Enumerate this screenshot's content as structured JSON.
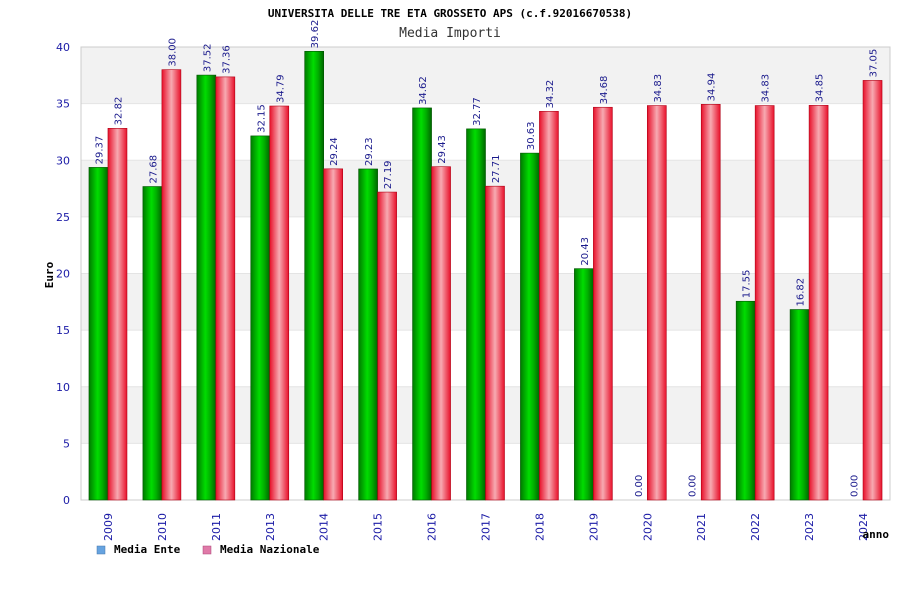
{
  "chart_data": {
    "type": "bar",
    "title": "UNIVERSITA DELLE TRE ETA GROSSETO APS (c.f.92016670538)",
    "subtitle": "Media Importi",
    "xlabel": "anno",
    "ylabel": "Euro",
    "ylim": [
      0,
      40
    ],
    "yticks": [
      0,
      5,
      10,
      15,
      20,
      25,
      30,
      35,
      40
    ],
    "ytick_labels": [
      "0",
      "5",
      "10",
      "15",
      "20",
      "25",
      "30",
      "35",
      "40"
    ],
    "grid": true,
    "legend_position": "bottom-left",
    "categories": [
      "2009",
      "2010",
      "2011",
      "2013",
      "2014",
      "2015",
      "2016",
      "2017",
      "2018",
      "2019",
      "2020",
      "2021",
      "2022",
      "2023",
      "2024"
    ],
    "series": [
      {
        "name": "Media Ente",
        "color": "#00bb00",
        "legend_color": "#66a3e0",
        "values": [
          29.37,
          27.68,
          37.52,
          32.15,
          39.62,
          29.23,
          34.62,
          32.77,
          30.63,
          20.43,
          0.0,
          0.0,
          17.55,
          16.82,
          0.0
        ],
        "labels": [
          "29.37",
          "27.68",
          "37.52",
          "32.15",
          "39.62",
          "29.23",
          "34.62",
          "32.77",
          "30.63",
          "20.43",
          "0.00",
          "0.00",
          "17.55",
          "16.82",
          "0.00"
        ]
      },
      {
        "name": "Media Nazionale",
        "color": "#ee1122",
        "legend_color": "#e07aa8",
        "values": [
          32.82,
          38.0,
          37.36,
          34.79,
          29.24,
          27.19,
          29.43,
          27.71,
          34.32,
          34.68,
          34.83,
          34.94,
          34.83,
          34.85,
          37.05
        ],
        "labels": [
          "32.82",
          "38.00",
          "37.36",
          "34.79",
          "29.24",
          "27.19",
          "29.43",
          "27.71",
          "34.32",
          "34.68",
          "34.83",
          "34.94",
          "34.83",
          "34.85",
          "37.05"
        ]
      }
    ]
  }
}
